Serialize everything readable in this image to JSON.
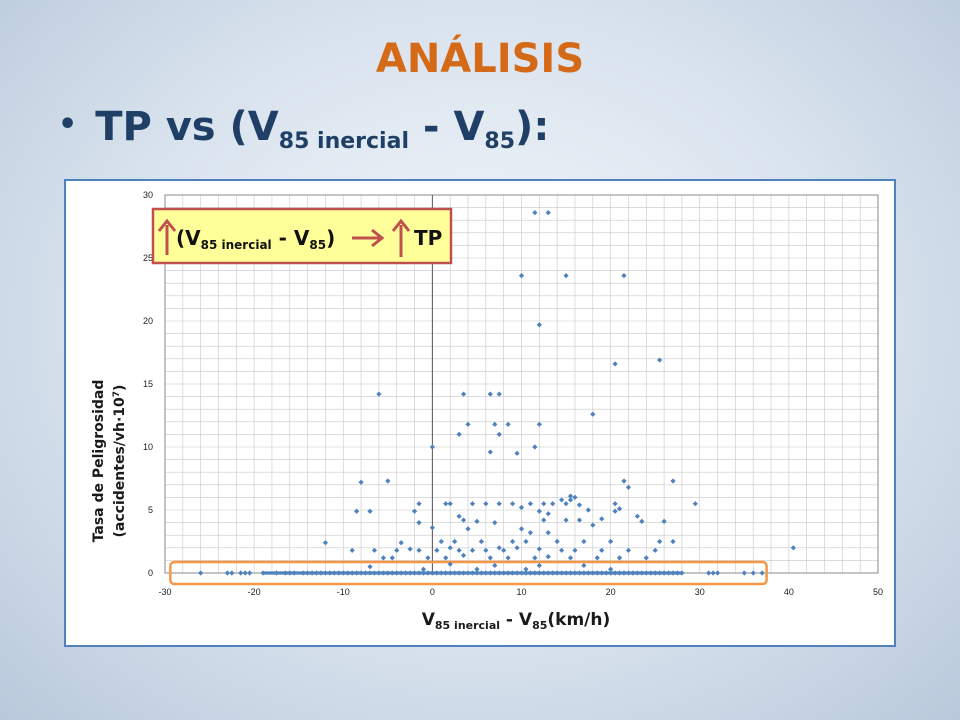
{
  "slide": {
    "title": "ANÁLISIS",
    "bullet_main": "TP vs (V",
    "bullet_sub1": "85 inercial",
    "bullet_mid": " - V",
    "bullet_sub2": "85",
    "bullet_end": "):"
  },
  "annotation": {
    "paren_open": "(V",
    "sub1": "85 inercial",
    "mid": " - V",
    "sub2": "85",
    "paren_close": ")",
    "result": "TP",
    "arrow_color": "#c0504d",
    "box_border": "#c0504d",
    "box_fill": "#ffff99"
  },
  "chart_data": {
    "type": "scatter",
    "xlim": [
      -30,
      50
    ],
    "ylim": [
      0,
      30
    ],
    "xticks": [
      "-30",
      "-20",
      "-10",
      "0",
      "10",
      "20",
      "30",
      "40",
      "50"
    ],
    "yticks": [
      "0",
      "5",
      "10",
      "15",
      "20",
      "25",
      "30"
    ],
    "xlabel": {
      "main": "V",
      "sub1": "85 inercial",
      "mid": " - V",
      "sub2": "85",
      "end": "(km/h)"
    },
    "ylabel_line1": "Tasa de Peligrosidad",
    "ylabel_line2_a": "(accidentes/vh·10",
    "ylabel_line2_sup": "7",
    "ylabel_line2_b": ")",
    "grid": true,
    "marker_color": "#4f81bd",
    "highlight_color": "#f79646",
    "points": [
      [
        11.5,
        28.6
      ],
      [
        13,
        28.6
      ],
      [
        10,
        23.6
      ],
      [
        15,
        23.6
      ],
      [
        21.5,
        23.6
      ],
      [
        12,
        19.7
      ],
      [
        20.5,
        16.6
      ],
      [
        25.5,
        16.9
      ],
      [
        -6,
        14.2
      ],
      [
        3.5,
        14.2
      ],
      [
        6.5,
        14.2
      ],
      [
        7.5,
        14.2
      ],
      [
        18,
        12.6
      ],
      [
        4,
        11.8
      ],
      [
        7,
        11.8
      ],
      [
        8.5,
        11.8
      ],
      [
        12,
        11.8
      ],
      [
        3,
        11
      ],
      [
        7.5,
        11
      ],
      [
        0,
        10
      ],
      [
        11.5,
        10
      ],
      [
        9.5,
        9.5
      ],
      [
        6.5,
        9.6
      ],
      [
        -8,
        7.2
      ],
      [
        -5,
        7.3
      ],
      [
        21.5,
        7.3
      ],
      [
        22,
        6.8
      ],
      [
        27,
        7.3
      ],
      [
        15.5,
        6.1
      ],
      [
        16,
        6
      ],
      [
        14.5,
        5.8
      ],
      [
        15,
        5.5
      ],
      [
        16.5,
        5.4
      ],
      [
        15.5,
        5.8
      ],
      [
        -1.5,
        5.5
      ],
      [
        1.5,
        5.5
      ],
      [
        2,
        5.5
      ],
      [
        4.5,
        5.5
      ],
      [
        6,
        5.5
      ],
      [
        7.5,
        5.5
      ],
      [
        9,
        5.5
      ],
      [
        11,
        5.5
      ],
      [
        12.5,
        5.5
      ],
      [
        13.5,
        5.5
      ],
      [
        20.5,
        5.5
      ],
      [
        29.5,
        5.5
      ],
      [
        10,
        5.2
      ],
      [
        21,
        5.1
      ],
      [
        -8.5,
        4.9
      ],
      [
        -7,
        4.9
      ],
      [
        -2,
        4.9
      ],
      [
        12,
        4.9
      ],
      [
        20.5,
        4.9
      ],
      [
        17.5,
        5
      ],
      [
        13,
        4.7
      ],
      [
        23,
        4.5
      ],
      [
        3,
        4.5
      ],
      [
        3.5,
        4.2
      ],
      [
        5,
        4.1
      ],
      [
        7,
        4
      ],
      [
        12.5,
        4.2
      ],
      [
        15,
        4.2
      ],
      [
        16.5,
        4.2
      ],
      [
        19,
        4.3
      ],
      [
        23.5,
        4.1
      ],
      [
        26,
        4.1
      ],
      [
        -1.5,
        4
      ],
      [
        18,
        3.8
      ],
      [
        0,
        3.6
      ],
      [
        4,
        3.5
      ],
      [
        10,
        3.5
      ],
      [
        11,
        3.2
      ],
      [
        13,
        3.2
      ],
      [
        -12,
        2.4
      ],
      [
        -3.5,
        2.4
      ],
      [
        1,
        2.5
      ],
      [
        2.5,
        2.5
      ],
      [
        5.5,
        2.5
      ],
      [
        9,
        2.5
      ],
      [
        10.5,
        2.5
      ],
      [
        14,
        2.5
      ],
      [
        17,
        2.5
      ],
      [
        20,
        2.5
      ],
      [
        25.5,
        2.5
      ],
      [
        27,
        2.5
      ],
      [
        -9,
        1.8
      ],
      [
        -6.5,
        1.8
      ],
      [
        -4,
        1.8
      ],
      [
        -1.5,
        1.8
      ],
      [
        -2.5,
        1.9
      ],
      [
        0.5,
        1.8
      ],
      [
        2,
        2
      ],
      [
        3,
        1.8
      ],
      [
        4.5,
        1.8
      ],
      [
        6,
        1.8
      ],
      [
        7.5,
        2
      ],
      [
        8,
        1.8
      ],
      [
        9.5,
        2
      ],
      [
        12,
        1.9
      ],
      [
        14.5,
        1.8
      ],
      [
        16,
        1.8
      ],
      [
        19,
        1.8
      ],
      [
        22,
        1.8
      ],
      [
        25,
        1.8
      ],
      [
        -5.5,
        1.2
      ],
      [
        -4.5,
        1.2
      ],
      [
        -0.5,
        1.2
      ],
      [
        1.5,
        1.2
      ],
      [
        3.5,
        1.4
      ],
      [
        6.5,
        1.2
      ],
      [
        8.5,
        1.2
      ],
      [
        11.5,
        1.2
      ],
      [
        13,
        1.3
      ],
      [
        15.5,
        1.2
      ],
      [
        18.5,
        1.2
      ],
      [
        21,
        1.2
      ],
      [
        24,
        1.2
      ],
      [
        2,
        0.7
      ],
      [
        7,
        0.6
      ],
      [
        12,
        0.6
      ],
      [
        17,
        0.6
      ],
      [
        -7,
        0.5
      ],
      [
        40.5,
        2
      ],
      [
        -1,
        0.3
      ],
      [
        5,
        0.3
      ],
      [
        10.5,
        0.3
      ],
      [
        20,
        0.3
      ]
    ],
    "zero_band_x": [
      -26,
      -23,
      -22.5,
      -21.5,
      -21,
      -20.5,
      -19,
      -17.5,
      -16.5,
      -16,
      -15.5,
      -14.5,
      -14,
      -13.5,
      -13,
      -12.5,
      -12,
      -11.5,
      -11,
      -10.5,
      -10,
      -9.5,
      -9,
      -8.5,
      -8,
      -7.5,
      -7,
      -6.5,
      -6,
      -5.5,
      -5,
      -4.5,
      -4,
      -3.5,
      -3,
      -2.5,
      -2,
      -1.5,
      -1,
      -0.5,
      0,
      0.5,
      1,
      1.5,
      2,
      2.5,
      3,
      3.5,
      4,
      4.5,
      5,
      5.5,
      6,
      6.5,
      7,
      7.5,
      8,
      8.5,
      9,
      9.5,
      10,
      10.5,
      11,
      11.5,
      12,
      12.5,
      13,
      13.5,
      14,
      14.5,
      15,
      15.5,
      16,
      16.5,
      17,
      17.5,
      18,
      18.5,
      19,
      19.5,
      20,
      20.5,
      21,
      21.5,
      22,
      22.5,
      23,
      23.5,
      24,
      24.5,
      25,
      25.5,
      26,
      26.5,
      27,
      27.5,
      28,
      31,
      31.5,
      32,
      35,
      36,
      37
    ]
  }
}
